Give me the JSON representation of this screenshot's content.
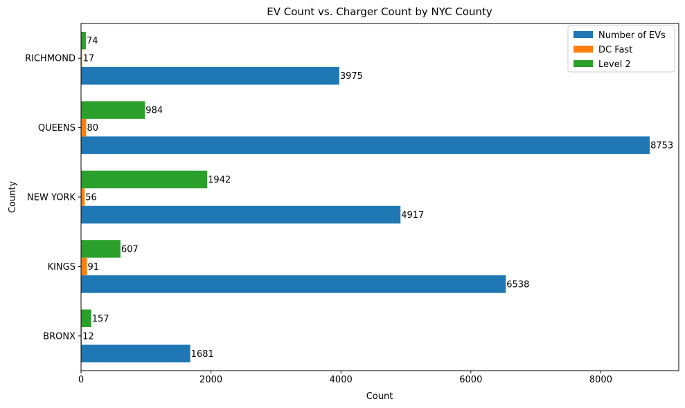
{
  "chart_data": {
    "type": "bar",
    "orientation": "horizontal",
    "title": "EV Count vs. Charger Count by NYC County",
    "xlabel": "Count",
    "ylabel": "County",
    "categories": [
      "BRONX",
      "KINGS",
      "NEW YORK",
      "QUEENS",
      "RICHMOND"
    ],
    "series": [
      {
        "name": "Number of EVs",
        "color": "#1f77b4",
        "values": [
          1681,
          6538,
          4917,
          8753,
          3975
        ]
      },
      {
        "name": "DC Fast",
        "color": "#ff7f0e",
        "values": [
          12,
          91,
          56,
          80,
          17
        ]
      },
      {
        "name": "Level 2",
        "color": "#2ca02c",
        "values": [
          157,
          607,
          1942,
          984,
          74
        ]
      }
    ],
    "xlim": [
      0,
      9200
    ],
    "xticks": [
      0,
      2000,
      4000,
      6000,
      8000
    ],
    "grid": false,
    "legend_position": "top-right",
    "data_labels": true
  }
}
